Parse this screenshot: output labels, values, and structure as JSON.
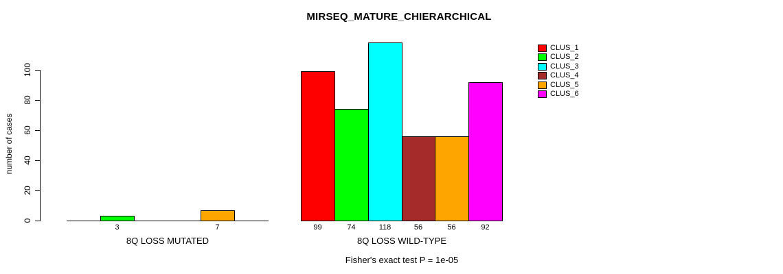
{
  "chart_data": {
    "type": "bar",
    "title": "MIRSEQ_MATURE_CHIERARCHICAL",
    "xlabel": "",
    "ylabel": "number of cases",
    "ylim": [
      0,
      100
    ],
    "yticks": [
      0,
      20,
      40,
      60,
      80,
      100
    ],
    "grid": false,
    "legend_position": "right",
    "categories": [
      "8Q LOSS MUTATED",
      "8Q LOSS WILD-TYPE"
    ],
    "series": [
      {
        "name": "CLUS_1",
        "color": "#FF0000",
        "values": [
          0,
          99
        ]
      },
      {
        "name": "CLUS_2",
        "color": "#00FF00",
        "values": [
          3,
          74
        ]
      },
      {
        "name": "CLUS_3",
        "color": "#00FFFF",
        "values": [
          0,
          118
        ]
      },
      {
        "name": "CLUS_4",
        "color": "#A52A2A",
        "values": [
          0,
          56
        ]
      },
      {
        "name": "CLUS_5",
        "color": "#FFA500",
        "values": [
          7,
          56
        ]
      },
      {
        "name": "CLUS_6",
        "color": "#FF00FF",
        "values": [
          0,
          92
        ]
      }
    ],
    "value_labels": {
      "show": true,
      "hide_zero": true
    },
    "shown_value_labels": {
      "8Q LOSS MUTATED": [
        "3",
        "7"
      ],
      "8Q LOSS WILD-TYPE": [
        "99",
        "74",
        "118",
        "56",
        "56",
        "92"
      ]
    },
    "caption": "Fisher's exact test P = 1e-05",
    "axis_color": "#000000",
    "bar_border_color": "#000000",
    "background_color": "#FFFFFF"
  }
}
